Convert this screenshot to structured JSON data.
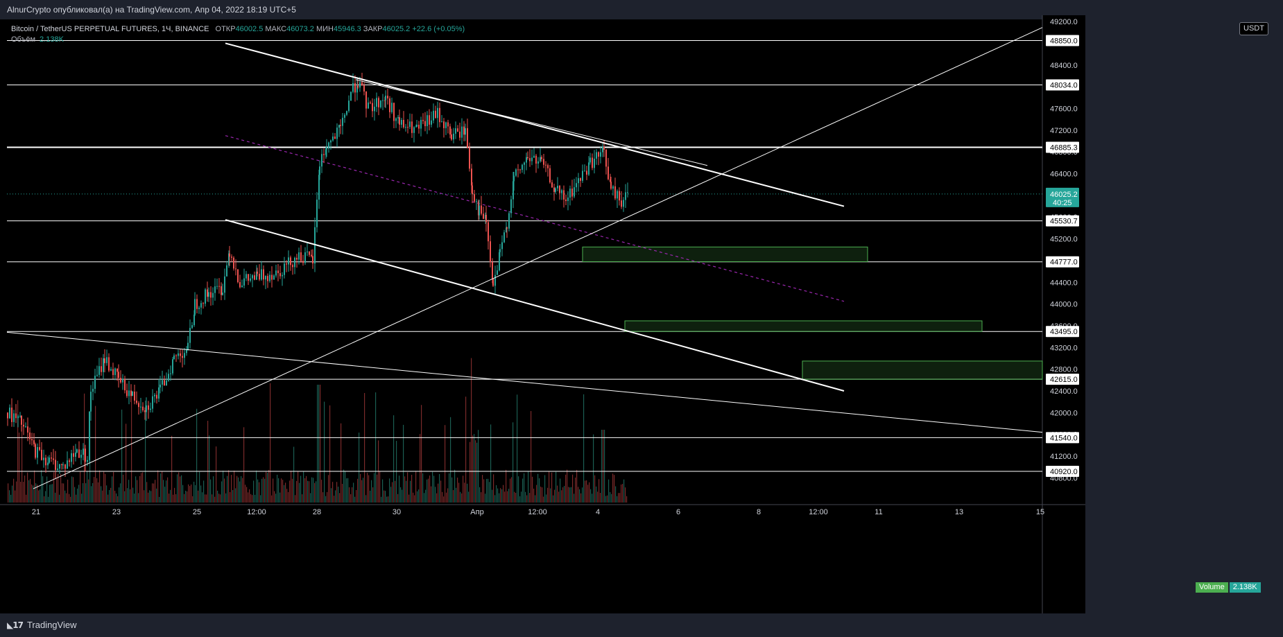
{
  "header": {
    "published": "AlnurCrypto опубликовал(а) на TradingView.com, Апр 04, 2022 18:19 UTC+5"
  },
  "legend": {
    "symbol": "Bitcoin / TetherUS PERPETUAL FUTURES, 1Ч, BINANCE",
    "open_label": "ОТКР",
    "open": "46002.5",
    "high_label": "МАКС",
    "high": "46073.2",
    "low_label": "МИН",
    "low": "45946.3",
    "close_label": "ЗАКР",
    "close": "46025.2",
    "change": "+22.6 (+0.05%)",
    "volume_label": "Объём",
    "volume": "2.138K"
  },
  "currency_badge": "USDT",
  "last_price": {
    "value": "46025.2",
    "countdown": "40:25"
  },
  "volume_badge": {
    "label": "Volume",
    "value": "2.138K"
  },
  "footer": {
    "brand": "TradingView"
  },
  "colors": {
    "up": "#26a69a",
    "down": "#ef5350",
    "line": "#ffffff",
    "zone": "#4caf50",
    "midline": "#9c27b0",
    "price_badge": "#26a69a"
  },
  "chart_data": {
    "type": "candlestick",
    "instrument": "Bitcoin / TetherUS PERPETUAL FUTURES",
    "interval": "1Ч",
    "y_axis": {
      "ticks": [
        "40800.0",
        "41200.0",
        "41600.0",
        "42000.0",
        "42400.0",
        "42800.0",
        "43200.0",
        "43600.0",
        "44000.0",
        "44400.0",
        "44800.0",
        "45200.0",
        "45600.0",
        "46000.0",
        "46400.0",
        "46800.0",
        "47200.0",
        "47600.0",
        "48000.0",
        "48400.0",
        "48800.0",
        "49200.0"
      ],
      "ylim": [
        40600,
        49250
      ]
    },
    "x_axis": {
      "ticks": [
        "21",
        "23",
        "25",
        "12:00",
        "28",
        "30",
        "Апр",
        "12:00",
        "4",
        "6",
        "8",
        "12:00",
        "11",
        "13",
        "15"
      ],
      "tick_x": [
        52,
        168,
        284,
        370,
        457,
        572,
        688,
        775,
        862,
        978,
        1094,
        1180,
        1267,
        1383,
        1500
      ]
    },
    "horizontal_levels": [
      48850.0,
      48034.0,
      46885.3,
      45530.7,
      44777.0,
      43495.0,
      42615.0,
      41540.0,
      40920.0
    ],
    "horizontal_level_labels": [
      "48850.0",
      "48034.0",
      "46885.3",
      "45530.7",
      "44777.0",
      "43495.0",
      "42615.0",
      "41540.0",
      "40920.0"
    ],
    "price_path_series": {
      "name": "",
      "x": [
        10,
        30,
        50,
        70,
        90,
        110,
        125,
        130,
        150,
        170,
        190,
        210,
        230,
        250,
        270,
        280,
        300,
        320,
        330,
        345,
        370,
        400,
        430,
        450,
        460,
        470,
        490,
        505,
        515,
        530,
        555,
        575,
        600,
        630,
        650,
        670,
        680,
        690,
        700,
        710,
        720,
        730,
        740,
        760,
        780,
        800,
        815,
        830,
        850,
        870,
        880,
        895,
        905
      ],
      "y": [
        42000,
        41800,
        41300,
        41100,
        41000,
        41300,
        41200,
        42400,
        43000,
        42600,
        42300,
        42100,
        42400,
        43000,
        43200,
        44000,
        44200,
        44300,
        45000,
        44400,
        44500,
        44600,
        44900,
        44800,
        46600,
        46900,
        47200,
        47900,
        48100,
        47600,
        47800,
        47300,
        47200,
        47500,
        47100,
        47200,
        46100,
        45700,
        45500,
        44300,
        44900,
        45500,
        46300,
        46700,
        46600,
        46100,
        45900,
        46200,
        46600,
        46800,
        46100,
        45900,
        46025
      ]
    },
    "trendlines": [
      {
        "x1": 325,
        "y1": 48800,
        "x2": 1217,
        "y2": 45800
      },
      {
        "x1": 325,
        "y1": 45550,
        "x2": 1217,
        "y2": 42400
      },
      {
        "x1": 48,
        "y1": 40600,
        "x2": 1503,
        "y2": 49090
      },
      {
        "x1": 10,
        "y1": 43480,
        "x2": 1503,
        "y2": 41640
      },
      {
        "x1": 513,
        "y1": 48130,
        "x2": 1020,
        "y2": 46550
      }
    ],
    "midline": {
      "x1": 325,
      "y1": 47100,
      "x2": 1217,
      "y2": 44050
    },
    "zones": [
      {
        "x1": 840,
        "x2": 1251,
        "y_top": 45050,
        "y_bottom": 44780
      },
      {
        "x1": 901,
        "x2": 1416,
        "y_top": 43690,
        "y_bottom": 43495
      },
      {
        "x1": 1157,
        "x2": 1503,
        "y_top": 42950,
        "y_bottom": 42615
      }
    ]
  }
}
